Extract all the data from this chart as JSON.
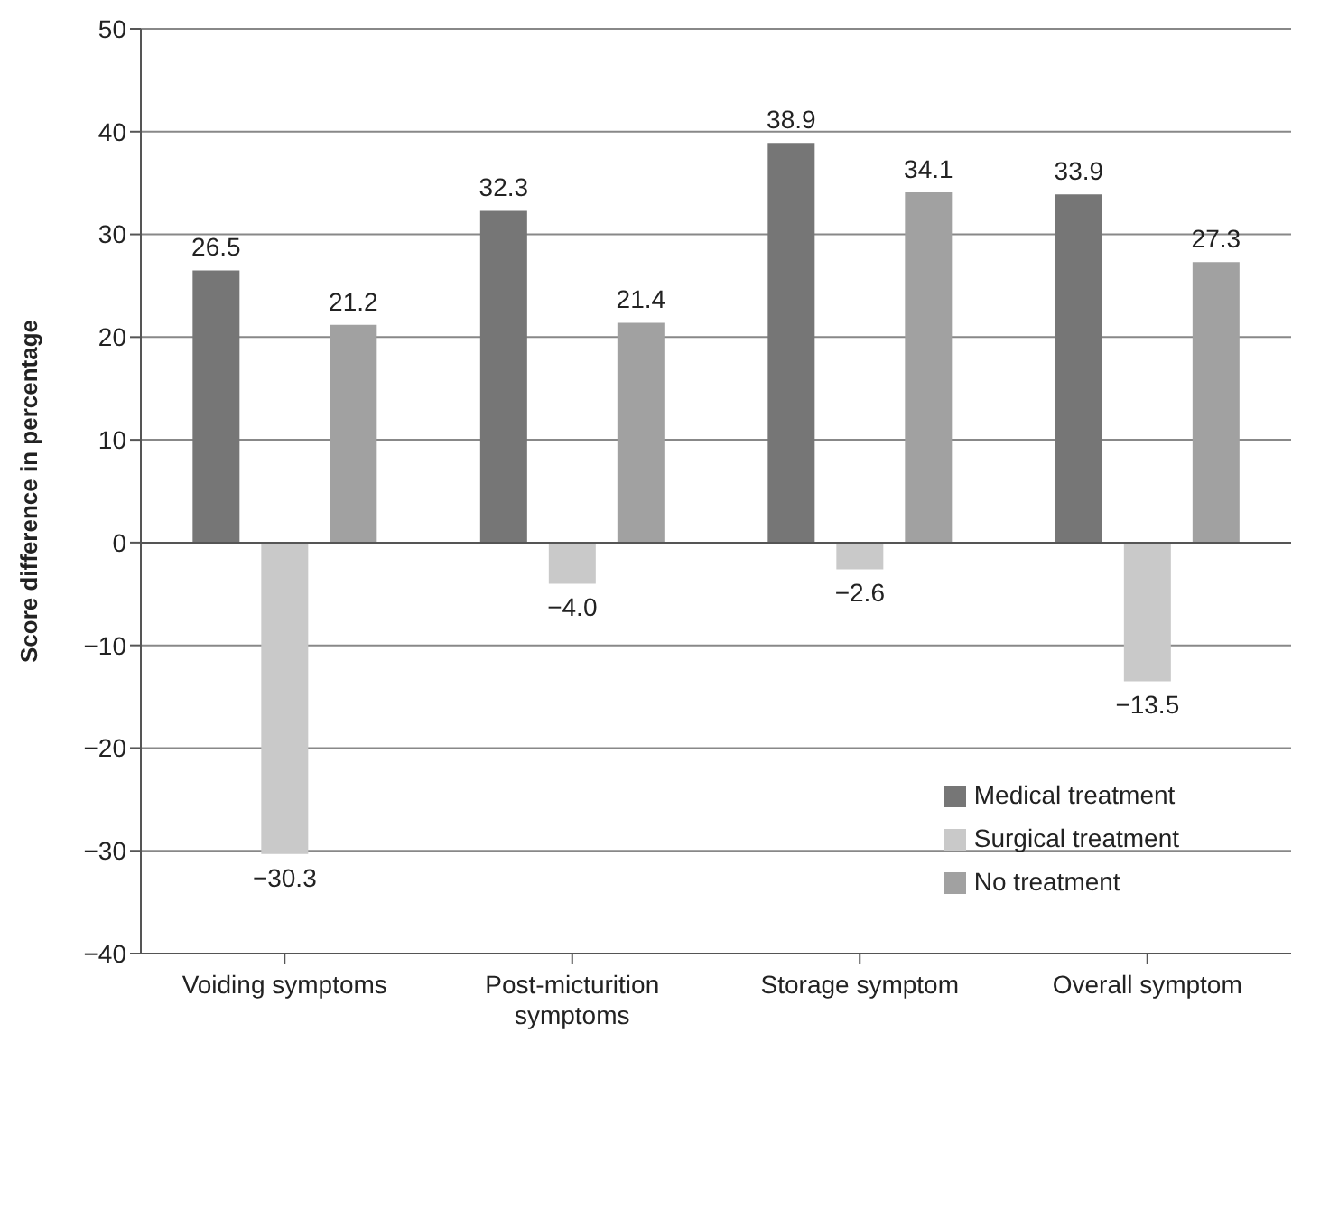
{
  "chart_data": {
    "type": "bar",
    "ylabel": "Score difference in percentage",
    "categories": [
      "Voiding symptoms",
      "Post-micturition symptoms",
      "Storage symptom",
      "Overall symptom"
    ],
    "series": [
      {
        "name": "Medical treatment",
        "color": "#767676",
        "values": [
          26.5,
          32.3,
          38.9,
          33.9
        ],
        "value_labels": [
          "26.5",
          "32.3",
          "38.9",
          "33.9"
        ]
      },
      {
        "name": "Surgical treatment",
        "color": "#c9c9c9",
        "values": [
          -30.3,
          -4.0,
          -2.6,
          -13.5
        ],
        "value_labels": [
          "−30.3",
          "−4.0",
          "−2.6",
          "−13.5"
        ]
      },
      {
        "name": "No treatment",
        "color": "#a1a1a1",
        "values": [
          21.2,
          21.4,
          34.1,
          27.3
        ],
        "value_labels": [
          "21.2",
          "21.4",
          "34.1",
          "27.3"
        ]
      }
    ],
    "ylim": [
      -40,
      50
    ],
    "yticks": [
      -40,
      -30,
      -20,
      -10,
      0,
      10,
      20,
      30,
      40,
      50
    ],
    "grid": "y",
    "legend": "bottom right"
  }
}
